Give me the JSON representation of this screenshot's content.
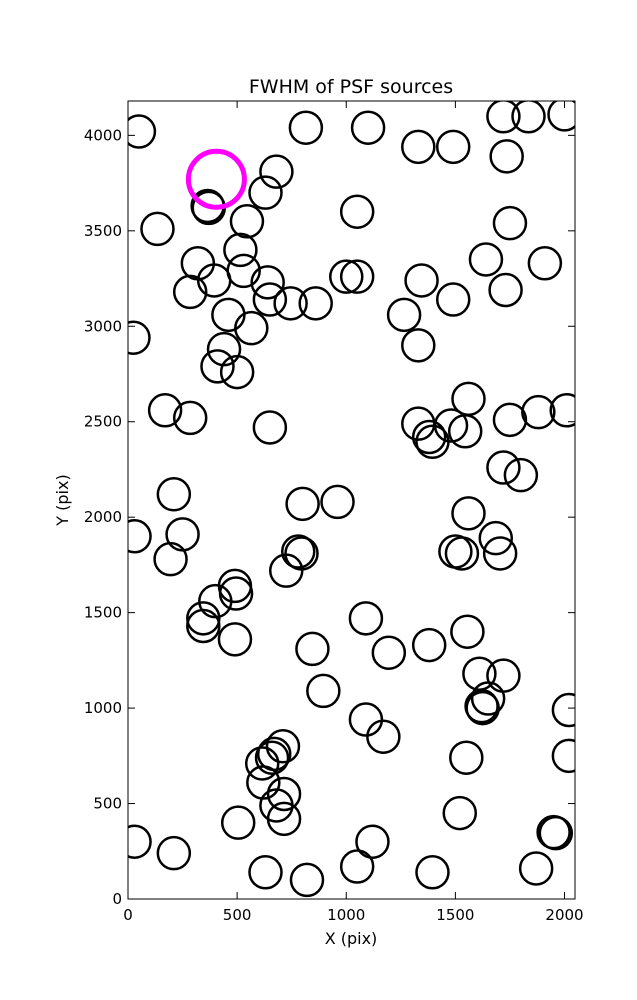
{
  "chart_data": {
    "type": "scatter",
    "title": "FWHM of PSF sources",
    "xlabel": "X (pix)",
    "ylabel": "Y (pix)",
    "xlim": [
      0,
      2048
    ],
    "ylim": [
      0,
      4180
    ],
    "xticks": [
      0,
      500,
      1000,
      1500,
      2000
    ],
    "yticks": [
      0,
      500,
      1000,
      1500,
      2000,
      2500,
      3000,
      3500,
      4000
    ],
    "grid": false,
    "marker": "open-circle",
    "marker_color": "#000000",
    "highlight_color": "#ff00ff",
    "points": [
      {
        "x": 50,
        "y": 4020
      },
      {
        "x": 680,
        "y": 3810
      },
      {
        "x": 815,
        "y": 4040
      },
      {
        "x": 1100,
        "y": 4040
      },
      {
        "x": 1330,
        "y": 3940
      },
      {
        "x": 1490,
        "y": 3940
      },
      {
        "x": 1720,
        "y": 4100
      },
      {
        "x": 1835,
        "y": 4100
      },
      {
        "x": 2000,
        "y": 4110
      },
      {
        "x": 1735,
        "y": 3890
      },
      {
        "x": 365,
        "y": 3630
      },
      {
        "x": 370,
        "y": 3620
      },
      {
        "x": 630,
        "y": 3700
      },
      {
        "x": 135,
        "y": 3510
      },
      {
        "x": 545,
        "y": 3550
      },
      {
        "x": 1050,
        "y": 3600
      },
      {
        "x": 1750,
        "y": 3540
      },
      {
        "x": 320,
        "y": 3330
      },
      {
        "x": 515,
        "y": 3400
      },
      {
        "x": 395,
        "y": 3240
      },
      {
        "x": 530,
        "y": 3290
      },
      {
        "x": 640,
        "y": 3230
      },
      {
        "x": 1000,
        "y": 3260
      },
      {
        "x": 1050,
        "y": 3260
      },
      {
        "x": 1345,
        "y": 3240
      },
      {
        "x": 1640,
        "y": 3350
      },
      {
        "x": 1910,
        "y": 3330
      },
      {
        "x": 285,
        "y": 3180
      },
      {
        "x": 650,
        "y": 3140
      },
      {
        "x": 745,
        "y": 3120
      },
      {
        "x": 860,
        "y": 3120
      },
      {
        "x": 1490,
        "y": 3140
      },
      {
        "x": 1730,
        "y": 3190
      },
      {
        "x": 460,
        "y": 3060
      },
      {
        "x": 565,
        "y": 2990
      },
      {
        "x": 1265,
        "y": 3060
      },
      {
        "x": 25,
        "y": 2940
      },
      {
        "x": 440,
        "y": 2880
      },
      {
        "x": 410,
        "y": 2790
      },
      {
        "x": 500,
        "y": 2760
      },
      {
        "x": 1330,
        "y": 2900
      },
      {
        "x": 170,
        "y": 2560
      },
      {
        "x": 285,
        "y": 2520
      },
      {
        "x": 650,
        "y": 2470
      },
      {
        "x": 1330,
        "y": 2490
      },
      {
        "x": 1380,
        "y": 2420
      },
      {
        "x": 1395,
        "y": 2395
      },
      {
        "x": 1480,
        "y": 2480
      },
      {
        "x": 1560,
        "y": 2620
      },
      {
        "x": 1545,
        "y": 2450
      },
      {
        "x": 1750,
        "y": 2510
      },
      {
        "x": 1880,
        "y": 2550
      },
      {
        "x": 2010,
        "y": 2560
      },
      {
        "x": 1720,
        "y": 2260
      },
      {
        "x": 1800,
        "y": 2220
      },
      {
        "x": 210,
        "y": 2120
      },
      {
        "x": 800,
        "y": 2070
      },
      {
        "x": 960,
        "y": 2080
      },
      {
        "x": 30,
        "y": 1900
      },
      {
        "x": 250,
        "y": 1910
      },
      {
        "x": 1560,
        "y": 2020
      },
      {
        "x": 195,
        "y": 1780
      },
      {
        "x": 780,
        "y": 1820
      },
      {
        "x": 795,
        "y": 1810
      },
      {
        "x": 725,
        "y": 1720
      },
      {
        "x": 1500,
        "y": 1820
      },
      {
        "x": 1530,
        "y": 1810
      },
      {
        "x": 1685,
        "y": 1890
      },
      {
        "x": 1705,
        "y": 1810
      },
      {
        "x": 490,
        "y": 1640
      },
      {
        "x": 400,
        "y": 1560
      },
      {
        "x": 495,
        "y": 1600
      },
      {
        "x": 345,
        "y": 1470
      },
      {
        "x": 345,
        "y": 1430
      },
      {
        "x": 490,
        "y": 1360
      },
      {
        "x": 1090,
        "y": 1470
      },
      {
        "x": 1555,
        "y": 1400
      },
      {
        "x": 845,
        "y": 1310
      },
      {
        "x": 1195,
        "y": 1290
      },
      {
        "x": 1380,
        "y": 1330
      },
      {
        "x": 1610,
        "y": 1180
      },
      {
        "x": 1720,
        "y": 1170
      },
      {
        "x": 1620,
        "y": 1010
      },
      {
        "x": 1625,
        "y": 1000
      },
      {
        "x": 1650,
        "y": 1050
      },
      {
        "x": 895,
        "y": 1090
      },
      {
        "x": 1090,
        "y": 940
      },
      {
        "x": 1170,
        "y": 850
      },
      {
        "x": 2020,
        "y": 990
      },
      {
        "x": 710,
        "y": 800
      },
      {
        "x": 670,
        "y": 760
      },
      {
        "x": 660,
        "y": 740
      },
      {
        "x": 615,
        "y": 710
      },
      {
        "x": 620,
        "y": 610
      },
      {
        "x": 1550,
        "y": 740
      },
      {
        "x": 2020,
        "y": 750
      },
      {
        "x": 715,
        "y": 550
      },
      {
        "x": 680,
        "y": 490
      },
      {
        "x": 715,
        "y": 420
      },
      {
        "x": 505,
        "y": 400
      },
      {
        "x": 1520,
        "y": 450
      },
      {
        "x": 30,
        "y": 300
      },
      {
        "x": 210,
        "y": 240
      },
      {
        "x": 1120,
        "y": 300
      },
      {
        "x": 1950,
        "y": 350
      },
      {
        "x": 1960,
        "y": 345
      },
      {
        "x": 630,
        "y": 140
      },
      {
        "x": 820,
        "y": 100
      },
      {
        "x": 1050,
        "y": 170
      },
      {
        "x": 1395,
        "y": 140
      },
      {
        "x": 1870,
        "y": 160
      }
    ],
    "highlight_points": [
      {
        "x": 405,
        "y": 3770
      }
    ]
  }
}
